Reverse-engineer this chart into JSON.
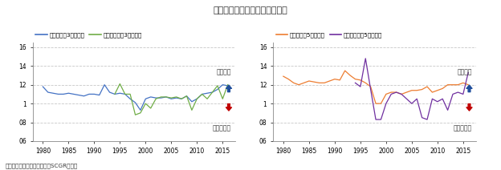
{
  "title": "図表⑫　財政の持続可能性指標",
  "subtitle": "（出所：財務省、内閣府よりSCGR作成）",
  "ylim": [
    0.6,
    1.65
  ],
  "yticks": [
    0.6,
    0.8,
    1.0,
    1.2,
    1.4,
    1.6
  ],
  "ytick_labels": [
    "06",
    "08",
    "1",
    "12",
    "14",
    "16"
  ],
  "xlim": [
    1978,
    2017.5
  ],
  "xticks": [
    1980,
    1985,
    1990,
    1995,
    2000,
    2005,
    2010,
    2015
  ],
  "grid_color": "#c8c8c8",
  "bg_color": "#ffffff",
  "text_color": "#333333",
  "left_blue_x": [
    1980,
    1981,
    1982,
    1983,
    1984,
    1985,
    1986,
    1987,
    1988,
    1989,
    1990,
    1991,
    1992,
    1993,
    1994,
    1995,
    1996,
    1997,
    1998,
    1999,
    2000,
    2001,
    2002,
    2003,
    2004,
    2005,
    2006,
    2007,
    2008,
    2009,
    2010,
    2011,
    2012,
    2013,
    2014,
    2015,
    2016
  ],
  "left_blue_y": [
    1.18,
    1.12,
    1.11,
    1.1,
    1.1,
    1.11,
    1.1,
    1.09,
    1.08,
    1.1,
    1.1,
    1.09,
    1.2,
    1.12,
    1.1,
    1.11,
    1.1,
    1.05,
    1.01,
    0.93,
    1.05,
    1.07,
    1.06,
    1.06,
    1.07,
    1.05,
    1.06,
    1.05,
    1.08,
    1.02,
    1.05,
    1.1,
    1.11,
    1.12,
    1.15,
    1.2,
    1.19
  ],
  "left_green_x": [
    1994,
    1995,
    1996,
    1997,
    1998,
    1999,
    2000,
    2001,
    2002,
    2003,
    2004,
    2005,
    2006,
    2007,
    2008,
    2009,
    2010,
    2011,
    2012,
    2013,
    2014,
    2015,
    2016
  ],
  "left_green_y": [
    1.1,
    1.21,
    1.1,
    1.1,
    0.88,
    0.9,
    1.0,
    0.95,
    1.05,
    1.07,
    1.07,
    1.06,
    1.07,
    1.05,
    1.08,
    0.93,
    1.05,
    1.1,
    1.05,
    1.12,
    1.19,
    1.05,
    1.2
  ],
  "right_yellow_x": [
    1980,
    1981,
    1982,
    1983,
    1984,
    1985,
    1986,
    1987,
    1988,
    1989,
    1990,
    1991,
    1992,
    1993,
    1994,
    1995,
    1996,
    1997,
    1998,
    1999,
    2000,
    2001,
    2002,
    2003,
    2004,
    2005,
    2006,
    2007,
    2008,
    2009,
    2010,
    2011,
    2012,
    2013,
    2014,
    2015,
    2016
  ],
  "right_yellow_y": [
    1.29,
    1.26,
    1.22,
    1.2,
    1.22,
    1.24,
    1.23,
    1.22,
    1.22,
    1.24,
    1.26,
    1.25,
    1.35,
    1.3,
    1.26,
    1.25,
    1.22,
    1.18,
    1.0,
    1.0,
    1.1,
    1.12,
    1.12,
    1.1,
    1.12,
    1.14,
    1.14,
    1.15,
    1.18,
    1.12,
    1.14,
    1.16,
    1.2,
    1.2,
    1.2,
    1.22,
    1.2
  ],
  "right_purple_x": [
    1994,
    1995,
    1996,
    1997,
    1998,
    1999,
    2000,
    2001,
    2002,
    2003,
    2004,
    2005,
    2006,
    2007,
    2008,
    2009,
    2010,
    2011,
    2012,
    2013,
    2014,
    2015,
    2016
  ],
  "right_purple_y": [
    1.22,
    1.18,
    1.48,
    1.15,
    0.83,
    0.83,
    1.0,
    1.1,
    1.12,
    1.1,
    1.05,
    1.0,
    1.05,
    0.85,
    0.83,
    1.05,
    1.02,
    1.05,
    0.93,
    1.1,
    1.12,
    1.1,
    1.33
  ],
  "left_legend": [
    {
      "label": "完全予見（3年度先）",
      "color": "#4472c4"
    },
    {
      "label": "適応的期待（3年度先）",
      "color": "#70ad47"
    }
  ],
  "right_legend": [
    {
      "label": "完全予見（5年度先）",
      "color": "#ed7d31"
    },
    {
      "label": "適応的期待（5年度先）",
      "color": "#7030a0"
    }
  ],
  "label_sustainable": "持続可能",
  "label_unsustainable": "持続不可能",
  "arrow_up_color": "#1f4e9c",
  "arrow_down_color": "#c00000"
}
